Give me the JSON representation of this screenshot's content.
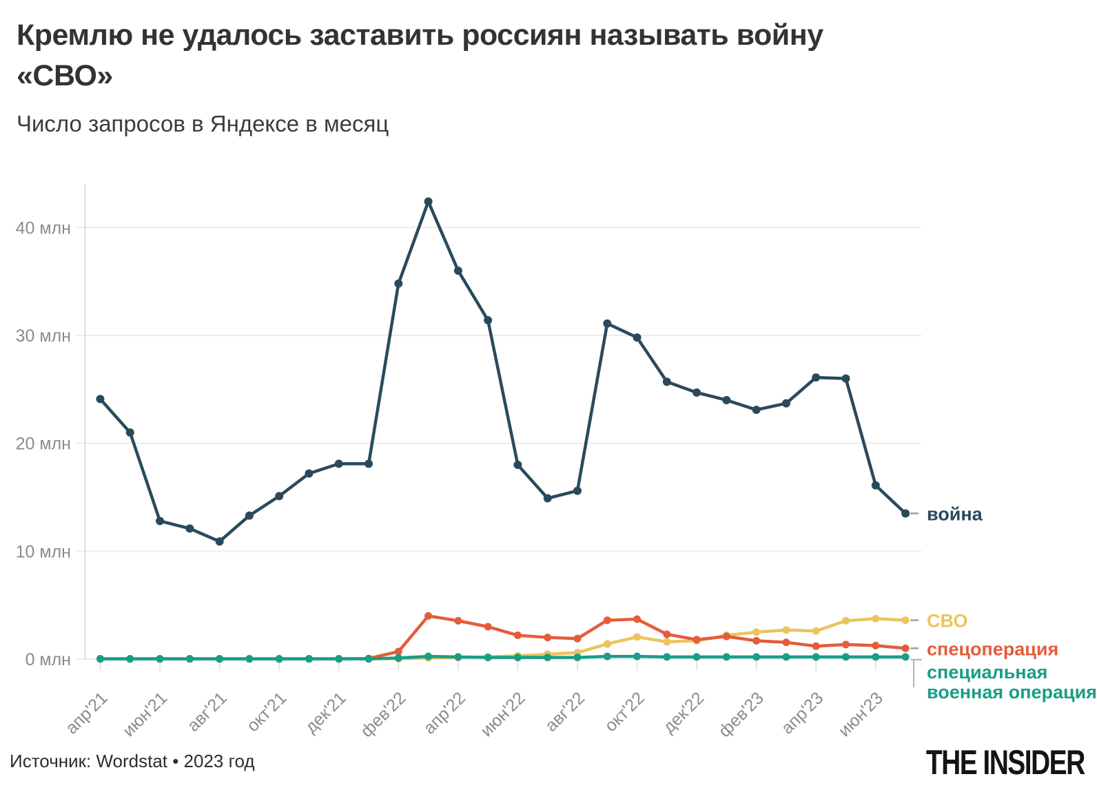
{
  "header": {
    "title": "Кремлю не удалось заставить россиян называть войну «СВО»",
    "subtitle": "Число запросов в Яндексе в месяц"
  },
  "footer": {
    "source": "Источник: Wordstat • 2023 год",
    "logo": "THE INSIDER"
  },
  "chart_data": {
    "type": "line",
    "title": "Кремлю не удалось заставить россиян называть войну «СВО»",
    "subtitle": "Число запросов в Яндексе в месяц",
    "unit": "млн",
    "grid": true,
    "legend_position": "right-of-line-ends",
    "x": [
      "апр'21",
      "май'21",
      "июн'21",
      "июл'21",
      "авг'21",
      "сен'21",
      "окт'21",
      "ноя'21",
      "дек'21",
      "янв'22",
      "фев'22",
      "мар'22",
      "апр'22",
      "май'22",
      "июн'22",
      "июл'22",
      "авг'22",
      "сен'22",
      "окт'22",
      "ноя'22",
      "дек'22",
      "янв'23",
      "фев'23",
      "мар'23",
      "апр'23",
      "май'23",
      "июн'23",
      "июл'23"
    ],
    "xtick_every": 2,
    "xtick_labels": [
      "апр'21",
      "июн'21",
      "авг'21",
      "окт'21",
      "дек'21",
      "фев'22",
      "апр'22",
      "июн'22",
      "авг'22",
      "окт'22",
      "дек'22",
      "фев'23",
      "апр'23",
      "июн'23"
    ],
    "ylim": [
      0,
      45
    ],
    "yticks": [
      0,
      10,
      20,
      30,
      40
    ],
    "ytick_labels": [
      "0 млн",
      "10 млн",
      "20 млн",
      "30 млн",
      "40 млн"
    ],
    "series": [
      {
        "name": "война",
        "color": "#2a4a5c",
        "values": [
          24.1,
          21.0,
          12.8,
          12.1,
          10.9,
          13.3,
          15.1,
          17.2,
          18.1,
          18.1,
          34.8,
          42.4,
          36.0,
          31.4,
          18.0,
          14.9,
          15.6,
          31.1,
          29.8,
          25.7,
          24.7,
          24.0,
          23.1,
          23.7,
          26.1,
          26.0,
          16.1,
          13.5
        ]
      },
      {
        "name": "СВО",
        "color": "#ecc35f",
        "values": [
          0.02,
          0.02,
          0.02,
          0.02,
          0.02,
          0.02,
          0.02,
          0.02,
          0.02,
          0.02,
          0.05,
          0.1,
          0.15,
          0.2,
          0.3,
          0.45,
          0.6,
          1.4,
          2.05,
          1.6,
          1.7,
          2.2,
          2.5,
          2.7,
          2.6,
          3.55,
          3.75,
          3.6
        ]
      },
      {
        "name": "спецоперация",
        "color": "#e45c3c",
        "values": [
          0.02,
          0.02,
          0.02,
          0.02,
          0.02,
          0.02,
          0.02,
          0.02,
          0.02,
          0.05,
          0.7,
          4.0,
          3.55,
          3.0,
          2.2,
          2.0,
          1.9,
          3.6,
          3.7,
          2.3,
          1.8,
          2.1,
          1.7,
          1.55,
          1.2,
          1.35,
          1.25,
          1.0
        ]
      },
      {
        "name": "специальная военная операция",
        "legend_lines": [
          "специальная",
          "военная операция"
        ],
        "color": "#189e86",
        "values": [
          0.02,
          0.02,
          0.02,
          0.02,
          0.02,
          0.02,
          0.02,
          0.02,
          0.02,
          0.02,
          0.1,
          0.25,
          0.2,
          0.15,
          0.15,
          0.15,
          0.15,
          0.25,
          0.25,
          0.2,
          0.2,
          0.2,
          0.2,
          0.2,
          0.2,
          0.2,
          0.2,
          0.2
        ]
      }
    ],
    "style_colors": {
      "grid": "#ececec",
      "axis": "#dcdcdc",
      "tick_text": "#8b8b8b",
      "legend_connector": "#9e9e9e"
    }
  }
}
